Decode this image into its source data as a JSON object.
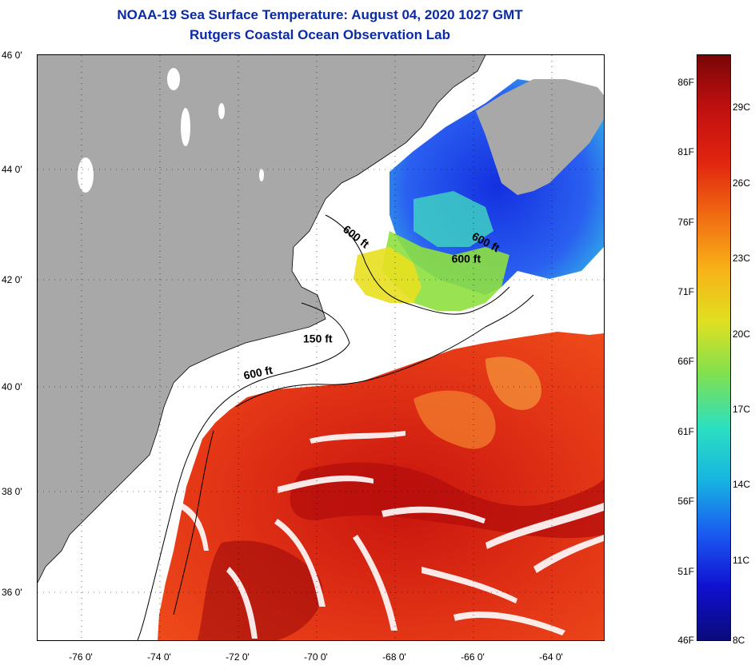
{
  "title": "NOAA-19 Sea Surface Temperature:  August 04, 2020 1027 GMT",
  "subtitle": "Rutgers Coastal Ocean Observation Lab",
  "colors": {
    "title": "#0a2aa8",
    "land": "#a8a8a8",
    "cloud": "#ffffff",
    "warm": "#e83a1c",
    "cool": "#1a3cd8"
  },
  "map": {
    "lat_labels": [
      "46 0'",
      "44 0'",
      "42 0'",
      "40 0'",
      "38 0'",
      "36 0'"
    ],
    "lon_labels": [
      "-76 0'",
      "-74 0'",
      "-72 0'",
      "-70 0'",
      "-68 0'",
      "-66 0'",
      "-64 0'"
    ],
    "lat_range": [
      35.0,
      46.0
    ],
    "lon_range": [
      -77.0,
      -62.5
    ],
    "contour_labels": [
      {
        "text": "600 ft",
        "lon": -69.2,
        "lat": 42.7,
        "angle": 38
      },
      {
        "text": "600 ft",
        "lon": -65.9,
        "lat": 42.55,
        "angle": 28
      },
      {
        "text": "600 ft",
        "lon": -66.4,
        "lat": 42.1,
        "angle": 0
      },
      {
        "text": "150 ft",
        "lon": -70.2,
        "lat": 40.6,
        "angle": 0
      },
      {
        "text": "600 ft",
        "lon": -71.7,
        "lat": 39.9,
        "angle": -12
      }
    ]
  },
  "colorbar": {
    "f_ticks": [
      "86F",
      "81F",
      "76F",
      "71F",
      "66F",
      "61F",
      "56F",
      "51F",
      "46F"
    ],
    "c_ticks": [
      "29C",
      "26C",
      "23C",
      "20C",
      "17C",
      "14C",
      "11C",
      "8C"
    ],
    "f_values": [
      86,
      81,
      76,
      71,
      66,
      61,
      56,
      51,
      46
    ],
    "c_values": [
      29,
      26,
      23,
      20,
      17,
      14,
      11,
      8
    ],
    "min_f": 46,
    "max_f": 88,
    "gradient": [
      "#0a0a7a",
      "#1010d0",
      "#1a5af0",
      "#16b4e0",
      "#2ce0c0",
      "#80e050",
      "#e0e020",
      "#f8b018",
      "#f06a12",
      "#e02410",
      "#c01010",
      "#7a0606"
    ]
  }
}
